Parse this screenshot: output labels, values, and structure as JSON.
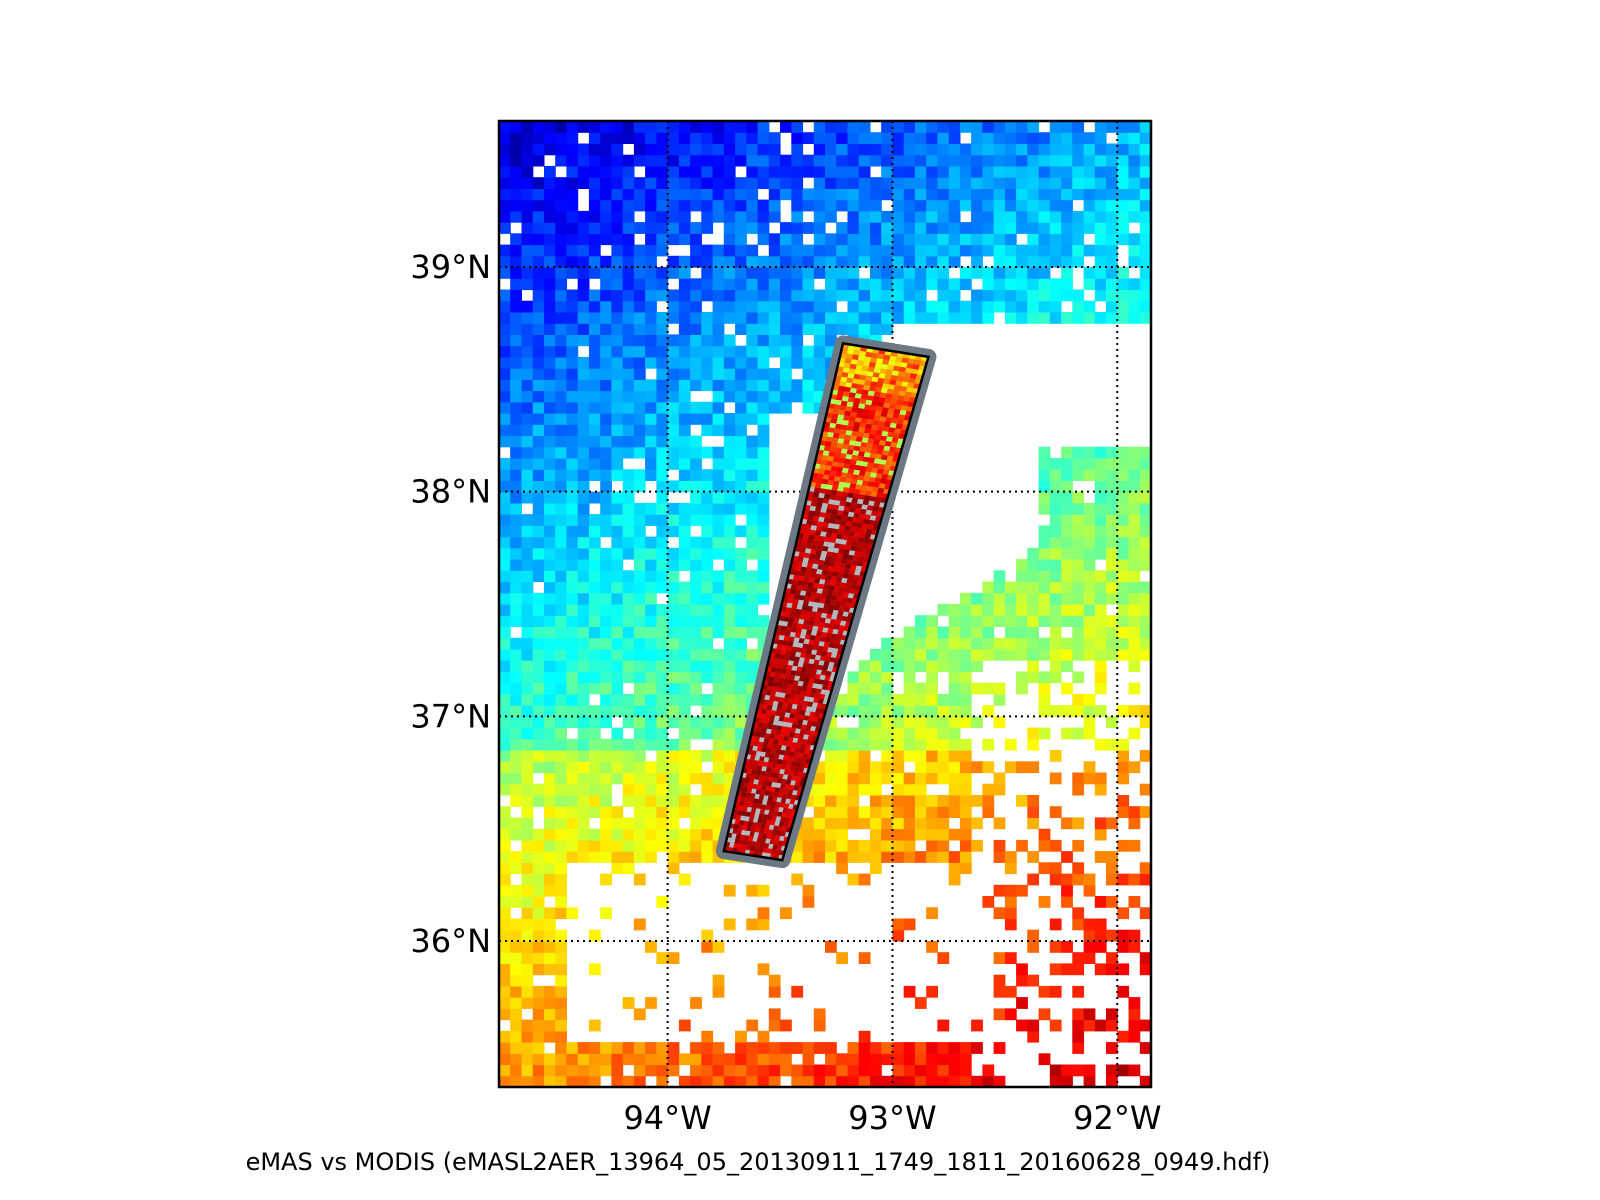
{
  "map": {
    "projection": "latitude-longitude",
    "lon_range": [
      -94.75,
      -91.85
    ],
    "lat_range": [
      35.35,
      39.65
    ],
    "gridlines": "dotted",
    "lon_ticks": [
      {
        "value": -94,
        "label": "94°W"
      },
      {
        "value": -93,
        "label": "93°W"
      },
      {
        "value": -92,
        "label": "92°W"
      }
    ],
    "lat_ticks": [
      {
        "value": 36,
        "label": "36°N"
      },
      {
        "value": 37,
        "label": "37°N"
      },
      {
        "value": 38,
        "label": "38°N"
      },
      {
        "value": 39,
        "label": "39°N"
      }
    ],
    "background_layer": "MODIS",
    "overlay_layer": "eMAS",
    "colormap": "jet",
    "swath_corners": [
      {
        "lon": -93.22,
        "lat": 38.66
      },
      {
        "lon": -92.84,
        "lat": 38.6
      },
      {
        "lon": -93.49,
        "lat": 36.36
      },
      {
        "lon": -93.75,
        "lat": 36.4
      }
    ]
  },
  "caption": "eMAS vs MODIS (eMASL2AER_13964_05_20130911_1749_1811_20160628_0949.hdf)"
}
